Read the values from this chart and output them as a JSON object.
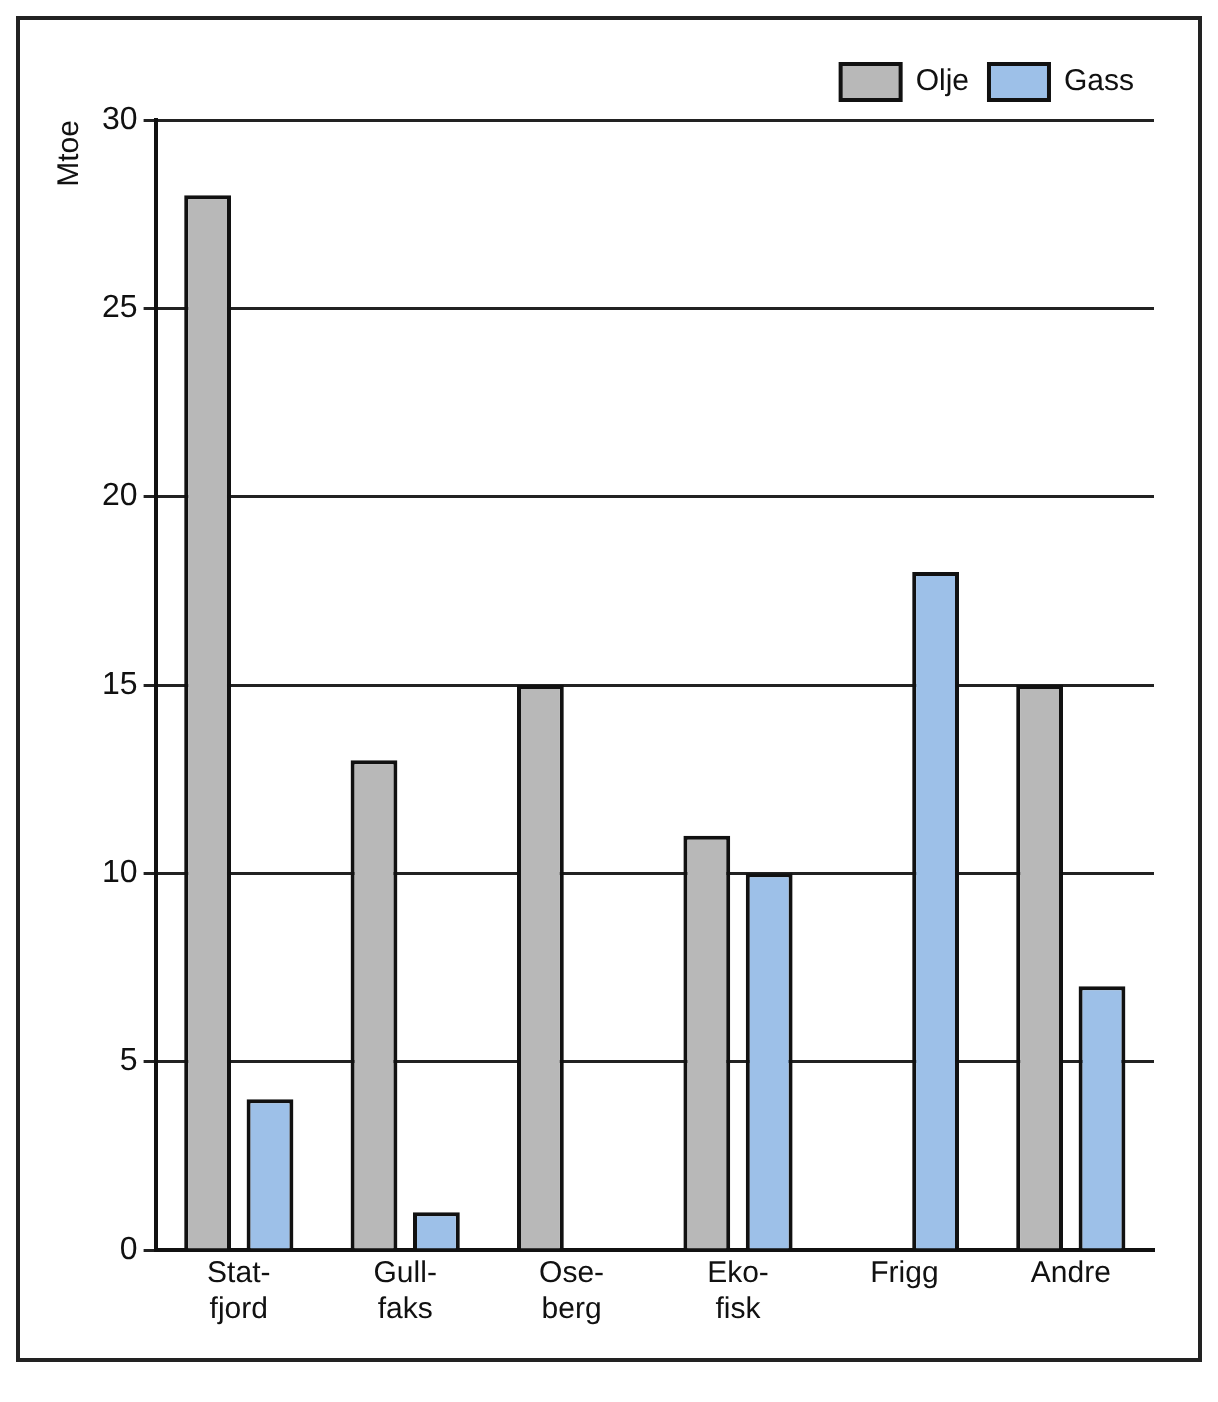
{
  "chart_data": {
    "type": "bar",
    "ylabel": "Mtoe",
    "categories": [
      "Stat-\nfjord",
      "Gull-\nfaks",
      "Ose-\nberg",
      "Eko-\nfisk",
      "Frigg",
      "Andre"
    ],
    "series": [
      {
        "name": "Olje",
        "color": "#b8b8b8",
        "values": [
          28,
          13,
          15,
          11,
          0,
          15
        ]
      },
      {
        "name": "Gass",
        "color": "#9dc0e8",
        "values": [
          4,
          1,
          null,
          10,
          18,
          7
        ]
      }
    ],
    "ylim": [
      0,
      30
    ],
    "yticks": [
      0,
      5,
      10,
      15,
      20,
      25,
      30
    ],
    "grid": "y",
    "legend": "top right"
  }
}
